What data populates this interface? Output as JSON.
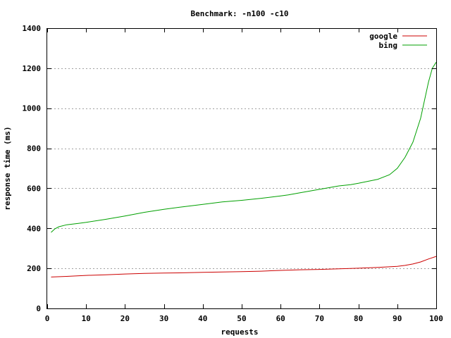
{
  "chart_data": {
    "type": "line",
    "title": "Benchmark: -n100 -c10",
    "xlabel": "requests",
    "ylabel": "response time (ms)",
    "xlim": [
      0,
      100
    ],
    "ylim": [
      0,
      1400
    ],
    "x_ticks": [
      0,
      10,
      20,
      30,
      40,
      50,
      60,
      70,
      80,
      90,
      100
    ],
    "y_ticks": [
      0,
      200,
      400,
      600,
      800,
      1000,
      1200,
      1400
    ],
    "grid": "horizontal dashed",
    "legend_position": "top-right",
    "series": [
      {
        "name": "google",
        "color": "#cc0000",
        "x": [
          1,
          5,
          10,
          15,
          20,
          25,
          30,
          35,
          40,
          45,
          50,
          55,
          60,
          65,
          70,
          75,
          80,
          85,
          90,
          92,
          94,
          96,
          98,
          100
        ],
        "y": [
          157,
          160,
          165,
          168,
          172,
          175,
          177,
          178,
          180,
          182,
          184,
          186,
          190,
          193,
          195,
          198,
          201,
          205,
          210,
          215,
          222,
          232,
          247,
          260
        ]
      },
      {
        "name": "bing",
        "color": "#00a000",
        "x": [
          1,
          2,
          3,
          5,
          8,
          10,
          15,
          20,
          25,
          30,
          35,
          40,
          45,
          50,
          55,
          60,
          62,
          65,
          70,
          75,
          78,
          80,
          85,
          88,
          90,
          92,
          94,
          96,
          98,
          99,
          100
        ],
        "y": [
          380,
          398,
          408,
          418,
          425,
          430,
          445,
          462,
          480,
          495,
          508,
          520,
          532,
          540,
          550,
          562,
          567,
          578,
          595,
          612,
          618,
          625,
          645,
          668,
          700,
          755,
          830,
          950,
          1130,
          1200,
          1230
        ]
      }
    ]
  }
}
